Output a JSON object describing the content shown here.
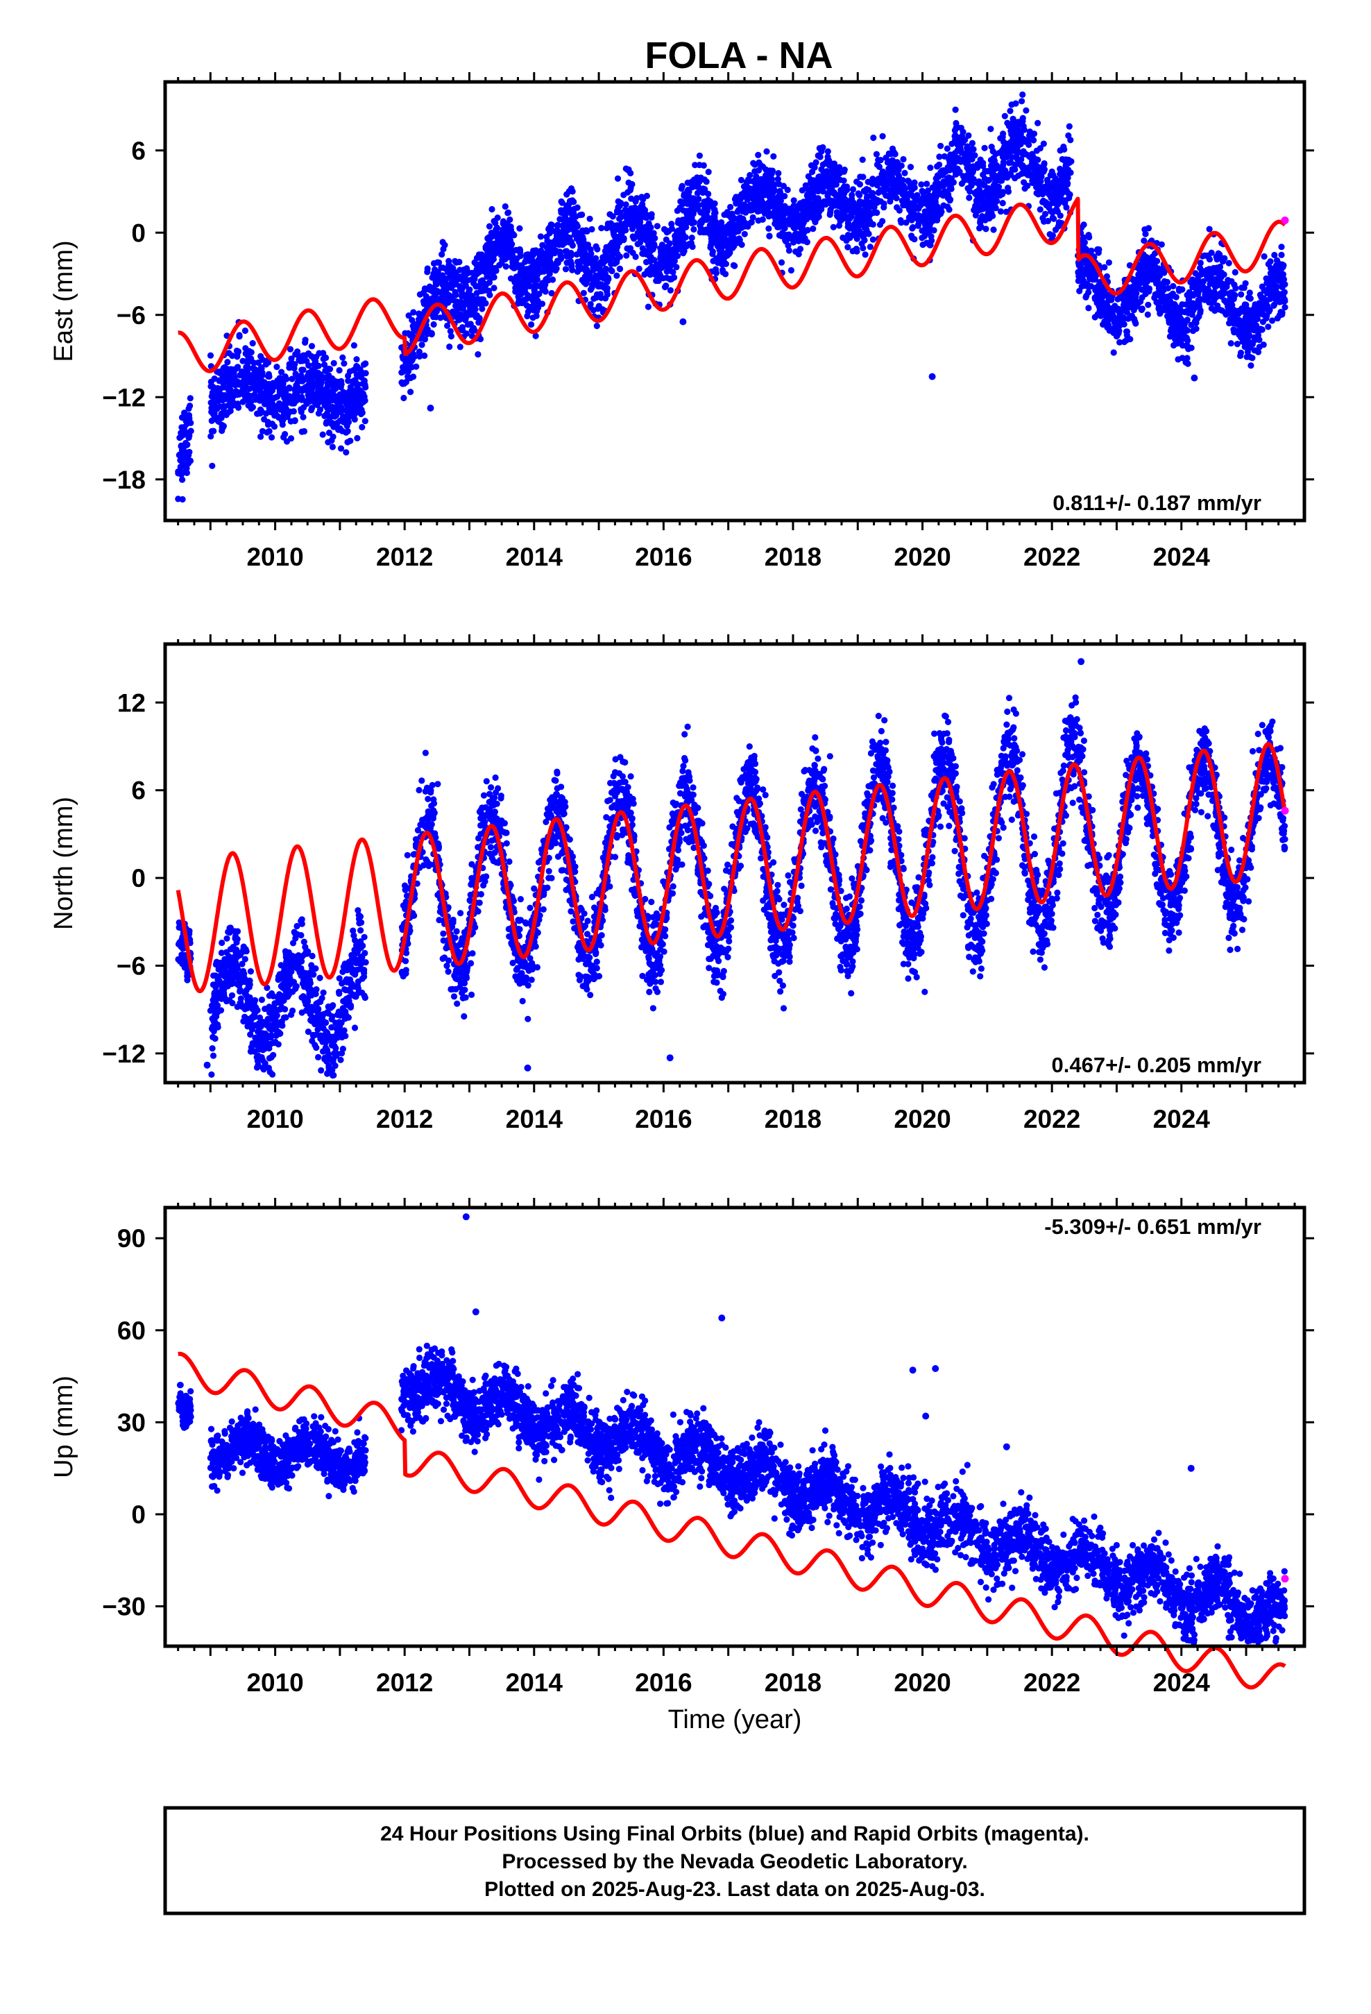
{
  "title": "FOLA - NA",
  "xlabel": "Time (year)",
  "caption": {
    "line1": "24 Hour Positions Using Final Orbits (blue) and Rapid Orbits (magenta).",
    "line2": "Processed by the Nevada Geodetic Laboratory.",
    "line3": "Plotted on 2025-Aug-23. Last data on 2025-Aug-03."
  },
  "colors": {
    "final": "#0000ff",
    "rapid": "#ff00ff",
    "model": "#ff0000",
    "frame": "#000000"
  },
  "chart_data": [
    {
      "type": "scatter",
      "ylabel": "East (mm)",
      "rate": "0.811+/- 0.187 mm/yr",
      "xlim": [
        2008.3,
        2025.9
      ],
      "ylim": [
        -21,
        11
      ],
      "xticks": [
        2010,
        2012,
        2014,
        2016,
        2018,
        2020,
        2022,
        2024
      ],
      "yticks": [
        -18,
        -12,
        -6,
        0,
        6
      ],
      "final_segments": [
        {
          "t0": 2008.5,
          "t1": 2008.7,
          "y0": -17.5,
          "y1": -14.0,
          "amp": 0.5,
          "sd": 1.5
        },
        {
          "t0": 2009.0,
          "t1": 2011.4,
          "y0": -11.5,
          "y1": -11.8,
          "amp": 1.0,
          "sd": 1.3
        },
        {
          "t0": 2011.95,
          "t1": 2013.0,
          "y0": -8.5,
          "y1": -3.2,
          "amp": 1.2,
          "sd": 1.4
        },
        {
          "t0": 2013.0,
          "t1": 2017.0,
          "y0": -3.0,
          "y1": 0.5,
          "amp": 2.0,
          "sd": 1.4
        },
        {
          "t0": 2017.0,
          "t1": 2020.5,
          "y0": 1.5,
          "y1": 3.0,
          "amp": 1.5,
          "sd": 1.2
        },
        {
          "t0": 2020.5,
          "t1": 2022.3,
          "y0": 4.5,
          "y1": 4.5,
          "amp": 2.0,
          "sd": 1.5
        },
        {
          "t0": 2022.4,
          "t1": 2025.6,
          "y0": -4.0,
          "y1": -5.5,
          "amp": 1.8,
          "sd": 1.2
        }
      ],
      "outliers": [
        [
          2020.15,
          -10.5
        ],
        [
          2016.3,
          -6.5
        ],
        [
          2013.05,
          -4.8
        ],
        [
          2012.4,
          -12.8
        ],
        [
          2024.2,
          -10.6
        ]
      ],
      "rapid": [
        [
          2025.6,
          0.9
        ]
      ],
      "model": {
        "offset": -8.9,
        "rate": 0.811,
        "t0": 2008.5,
        "amp": 1.6,
        "phase": 0.25,
        "steps": [
          [
            2012.0,
            1.2
          ],
          [
            2022.4,
            4.5
          ]
        ],
        "t_start": 2008.5,
        "t_end": 2025.6
      }
    },
    {
      "type": "scatter",
      "ylabel": "North (mm)",
      "rate": "0.467+/- 0.205 mm/yr",
      "xlim": [
        2008.3,
        2025.9
      ],
      "ylim": [
        -14,
        16
      ],
      "xticks": [
        2010,
        2012,
        2014,
        2016,
        2018,
        2020,
        2022,
        2024
      ],
      "yticks": [
        -12,
        -6,
        0,
        6,
        12
      ],
      "final_segments": [
        {
          "t0": 2008.5,
          "t1": 2008.7,
          "y0": -5.0,
          "y1": -5.0,
          "amp": 0.5,
          "sd": 1.0
        },
        {
          "t0": 2009.0,
          "t1": 2011.4,
          "y0": -8.5,
          "y1": -8.5,
          "amp": 3.0,
          "sd": 1.4
        },
        {
          "t0": 2011.95,
          "t1": 2015.0,
          "y0": -1.5,
          "y1": -0.5,
          "amp": 5.0,
          "sd": 1.5
        },
        {
          "t0": 2015.0,
          "t1": 2019.0,
          "y0": -0.5,
          "y1": 1.5,
          "amp": 5.5,
          "sd": 1.5
        },
        {
          "t0": 2019.0,
          "t1": 2022.5,
          "y0": 1.5,
          "y1": 3.0,
          "amp": 6.0,
          "sd": 1.6
        },
        {
          "t0": 2022.5,
          "t1": 2025.6,
          "y0": 2.5,
          "y1": 3.5,
          "amp": 5.0,
          "sd": 1.3
        }
      ],
      "outliers": [
        [
          2013.9,
          -13.0
        ],
        [
          2016.1,
          -12.3
        ],
        [
          2022.45,
          14.8
        ],
        [
          2008.95,
          -12.8
        ]
      ],
      "rapid": [
        [
          2025.6,
          4.6
        ]
      ],
      "model": {
        "offset": -3.3,
        "rate": 0.467,
        "t0": 2008.5,
        "amp": 4.6,
        "phase": 0.09,
        "steps": [],
        "t_start": 2008.5,
        "t_end": 2025.6
      }
    },
    {
      "type": "scatter",
      "ylabel": "Up (mm)",
      "rate": "-5.309+/- 0.651 mm/yr",
      "xlim": [
        2008.3,
        2025.9
      ],
      "ylim": [
        -43,
        100
      ],
      "xticks": [
        2010,
        2012,
        2014,
        2016,
        2018,
        2020,
        2022,
        2024
      ],
      "yticks": [
        -30,
        0,
        30,
        60,
        90
      ],
      "final_segments": [
        {
          "t0": 2008.5,
          "t1": 2008.7,
          "y0": 33.0,
          "y1": 33.0,
          "amp": 2.0,
          "sd": 3.0
        },
        {
          "t0": 2009.0,
          "t1": 2011.4,
          "y0": 22.0,
          "y1": 18.0,
          "amp": 4.0,
          "sd": 4.0
        },
        {
          "t0": 2011.95,
          "t1": 2025.6,
          "y0": 44.0,
          "y1": -34.0,
          "amp": 5.0,
          "sd": 5.0
        }
      ],
      "outliers": [
        [
          2012.95,
          97.0
        ],
        [
          2016.9,
          64.0
        ],
        [
          2013.1,
          66.0
        ],
        [
          2019.85,
          47.0
        ],
        [
          2020.2,
          47.5
        ],
        [
          2020.05,
          32.0
        ],
        [
          2021.3,
          22.0
        ],
        [
          2024.15,
          15.0
        ]
      ],
      "rapid": [
        [
          2025.6,
          -21.0
        ]
      ],
      "model": {
        "offset": 47.5,
        "rate": -5.309,
        "t0": 2008.5,
        "amp": 5.0,
        "phase": 0.3,
        "steps": [
          [
            2012.0,
            11.0
          ]
        ],
        "t_start": 2008.5,
        "t_end": 2025.6
      }
    }
  ]
}
